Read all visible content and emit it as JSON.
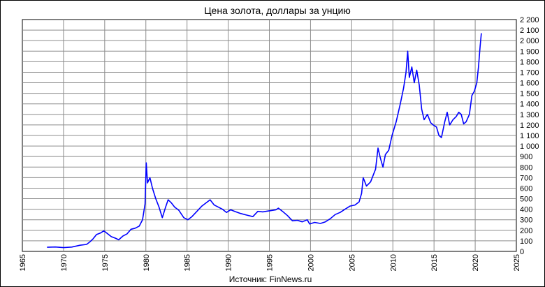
{
  "chart_data": {
    "type": "line",
    "title": "Цена золота, доллары за унцию",
    "source": "Источник: FinNews.ru",
    "xlabel": "",
    "ylabel": "",
    "xlim": [
      1965,
      2025
    ],
    "ylim": [
      0,
      2200
    ],
    "x_ticks": [
      1965,
      1970,
      1975,
      1980,
      1985,
      1990,
      1995,
      2000,
      2005,
      2010,
      2015,
      2020,
      2025
    ],
    "y_ticks": [
      0,
      100,
      200,
      300,
      400,
      500,
      600,
      700,
      800,
      900,
      1000,
      1100,
      1200,
      1300,
      1400,
      1500,
      1600,
      1700,
      1800,
      1900,
      2000,
      2100,
      2200
    ],
    "y_tick_labels": [
      "0",
      "100",
      "200",
      "300",
      "400",
      "500",
      "600",
      "700",
      "800",
      "900",
      "1 000",
      "1 100",
      "1 200",
      "1 300",
      "1 400",
      "1 500",
      "1 600",
      "1 700",
      "1 800",
      "1 900",
      "2 000",
      "2 100",
      "2 200"
    ],
    "grid": true,
    "legend": "none",
    "line_color": "#0000ff",
    "series": [
      {
        "x": [
          1968.0,
          1969.0,
          1970.0,
          1971.0,
          1972.0,
          1972.8,
          1973.2,
          1973.6,
          1974.0,
          1974.5,
          1974.9,
          1975.3,
          1975.8,
          1976.3,
          1976.7,
          1977.2,
          1977.7,
          1978.2,
          1978.7,
          1979.2,
          1979.6,
          1979.9,
          1980.05,
          1980.2,
          1980.5,
          1980.8,
          1981.2,
          1981.6,
          1982.0,
          1982.4,
          1982.7,
          1983.1,
          1983.5,
          1984.0,
          1984.6,
          1985.1,
          1985.6,
          1986.2,
          1986.8,
          1987.3,
          1987.8,
          1988.3,
          1988.8,
          1989.3,
          1989.8,
          1990.3,
          1990.8,
          1991.5,
          1992.2,
          1993.0,
          1993.6,
          1994.2,
          1995.0,
          1995.8,
          1996.1,
          1996.6,
          1997.2,
          1997.8,
          1998.4,
          1999.0,
          1999.6,
          1999.9,
          2000.5,
          2001.2,
          2001.8,
          2002.4,
          2003.0,
          2003.6,
          2004.2,
          2004.8,
          2005.4,
          2005.9,
          2006.2,
          2006.4,
          2006.8,
          2007.3,
          2007.9,
          2008.2,
          2008.5,
          2008.8,
          2009.1,
          2009.5,
          2009.9,
          2010.4,
          2010.9,
          2011.3,
          2011.6,
          2011.8,
          2012.0,
          2012.3,
          2012.6,
          2012.9,
          2013.2,
          2013.5,
          2013.8,
          2014.2,
          2014.6,
          2014.9,
          2015.3,
          2015.6,
          2015.9,
          2016.3,
          2016.6,
          2016.9,
          2017.3,
          2017.7,
          2018.0,
          2018.3,
          2018.6,
          2018.9,
          2019.3,
          2019.6,
          2019.9,
          2020.2,
          2020.4,
          2020.6,
          2020.75
        ],
        "y": [
          39,
          42,
          36,
          41,
          58,
          66,
          90,
          120,
          160,
          175,
          195,
          170,
          140,
          125,
          110,
          145,
          165,
          210,
          220,
          240,
          300,
          450,
          840,
          650,
          700,
          600,
          500,
          420,
          320,
          420,
          490,
          460,
          420,
          390,
          320,
          300,
          330,
          380,
          430,
          460,
          490,
          440,
          420,
          400,
          370,
          395,
          380,
          360,
          345,
          330,
          380,
          375,
          385,
          395,
          410,
          380,
          340,
          290,
          295,
          280,
          300,
          260,
          275,
          265,
          280,
          310,
          350,
          370,
          400,
          430,
          440,
          470,
          550,
          700,
          620,
          660,
          780,
          980,
          880,
          800,
          920,
          960,
          1100,
          1230,
          1400,
          1550,
          1700,
          1900,
          1650,
          1750,
          1600,
          1720,
          1580,
          1350,
          1250,
          1300,
          1220,
          1200,
          1180,
          1100,
          1080,
          1230,
          1320,
          1200,
          1250,
          1280,
          1320,
          1300,
          1210,
          1230,
          1300,
          1480,
          1520,
          1600,
          1750,
          1950,
          2070
        ]
      }
    ]
  }
}
